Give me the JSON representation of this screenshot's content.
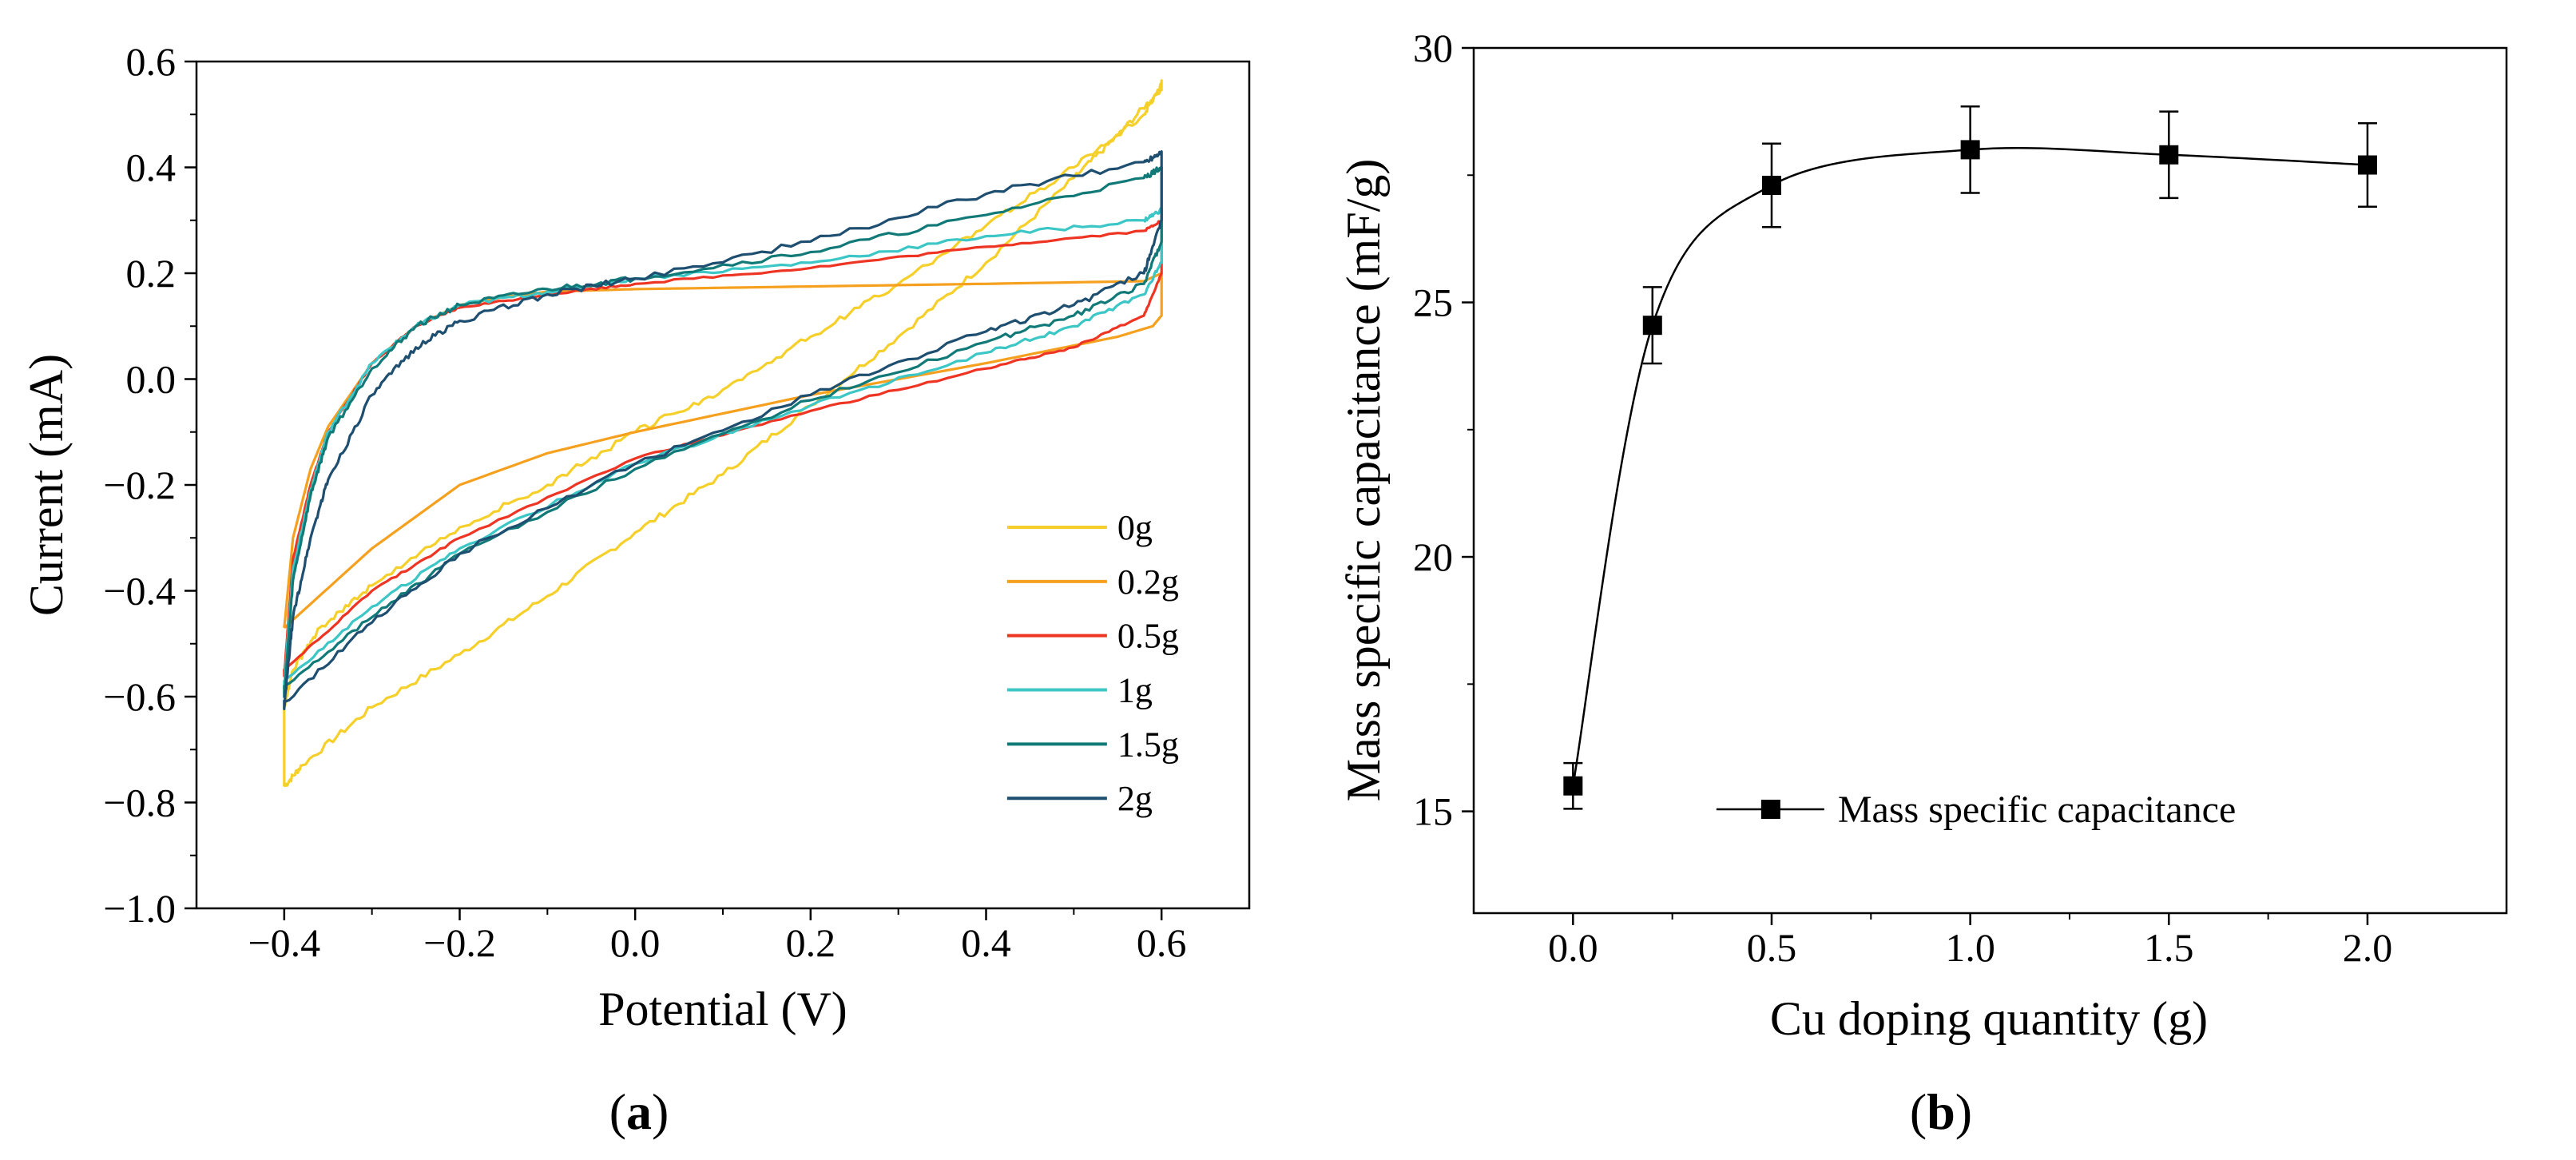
{
  "chart_data": [
    {
      "panel": "(a)",
      "panel_letter": "a",
      "type": "line",
      "title": "",
      "xlabel": "Potential (V)",
      "ylabel": "Current (mA)",
      "xlim": [
        -0.5,
        0.7
      ],
      "ylim": [
        -1.0,
        0.6
      ],
      "xticks": [
        -0.4,
        -0.2,
        0.0,
        0.2,
        0.4,
        0.6
      ],
      "xtick_labels": [
        "−0.4",
        "−0.2",
        "0.0",
        "0.2",
        "0.4",
        "0.6"
      ],
      "yticks": [
        -1.0,
        -0.8,
        -0.6,
        -0.4,
        -0.2,
        0.0,
        0.2,
        0.4,
        0.6
      ],
      "ytick_labels": [
        "−1.0",
        "−0.8",
        "−0.6",
        "−0.4",
        "−0.2",
        "0.0",
        "0.2",
        "0.4",
        "0.6"
      ],
      "grid": false,
      "legend_position": "lower-right",
      "series": [
        {
          "name": "0g",
          "color": "#f6d02a",
          "noise": 0.006,
          "x": [
            -0.4,
            -0.38,
            -0.3,
            -0.2,
            -0.1,
            0.0,
            0.1,
            0.2,
            0.3,
            0.4,
            0.5,
            0.55,
            0.6,
            0.6,
            0.58,
            0.5,
            0.4,
            0.3,
            0.2,
            0.1,
            0.0,
            -0.1,
            -0.2,
            -0.3,
            -0.36,
            -0.39,
            -0.4,
            -0.4
          ],
          "y": [
            -0.77,
            -0.73,
            -0.62,
            -0.52,
            -0.41,
            -0.29,
            -0.18,
            -0.05,
            0.08,
            0.22,
            0.38,
            0.46,
            0.55,
            0.56,
            0.5,
            0.4,
            0.29,
            0.18,
            0.08,
            -0.02,
            -0.1,
            -0.2,
            -0.28,
            -0.39,
            -0.47,
            -0.55,
            -0.62,
            -0.77
          ]
        },
        {
          "name": "0.2g",
          "color": "#f5a01e",
          "noise": 0.0,
          "x": [
            -0.4,
            -0.39,
            -0.37,
            -0.35,
            -0.3,
            -0.25,
            -0.2,
            -0.15,
            -0.1,
            0.0,
            0.2,
            0.4,
            0.58,
            0.6,
            0.6,
            0.59,
            0.55,
            0.4,
            0.2,
            0.0,
            -0.1,
            -0.2,
            -0.3,
            -0.4,
            -0.4
          ],
          "y": [
            -0.47,
            -0.3,
            -0.17,
            -0.09,
            0.03,
            0.1,
            0.14,
            0.155,
            0.165,
            0.17,
            0.175,
            0.18,
            0.185,
            0.2,
            0.12,
            0.1,
            0.08,
            0.03,
            -0.03,
            -0.1,
            -0.14,
            -0.2,
            -0.32,
            -0.47,
            -0.47
          ]
        },
        {
          "name": "0.5g",
          "color": "#ee3524",
          "noise": 0.002,
          "x": [
            -0.4,
            -0.39,
            -0.37,
            -0.35,
            -0.3,
            -0.25,
            -0.2,
            -0.1,
            0.0,
            0.2,
            0.4,
            0.58,
            0.6,
            0.6,
            0.58,
            0.5,
            0.4,
            0.2,
            0.0,
            -0.2,
            -0.3,
            -0.4,
            -0.4
          ],
          "y": [
            -0.56,
            -0.34,
            -0.2,
            -0.1,
            0.03,
            0.1,
            0.135,
            0.16,
            0.18,
            0.21,
            0.25,
            0.28,
            0.3,
            0.2,
            0.12,
            0.06,
            0.02,
            -0.06,
            -0.15,
            -0.3,
            -0.4,
            -0.55,
            -0.56
          ]
        },
        {
          "name": "1g",
          "color": "#3cc6c6",
          "noise": 0.004,
          "x": [
            -0.4,
            -0.39,
            -0.37,
            -0.35,
            -0.3,
            -0.25,
            -0.2,
            -0.1,
            0.0,
            0.2,
            0.4,
            0.58,
            0.6,
            0.6,
            0.58,
            0.5,
            0.4,
            0.2,
            0.0,
            -0.2,
            -0.3,
            -0.4,
            -0.4
          ],
          "y": [
            -0.58,
            -0.36,
            -0.21,
            -0.1,
            0.03,
            0.1,
            0.14,
            0.165,
            0.19,
            0.22,
            0.27,
            0.3,
            0.32,
            0.22,
            0.16,
            0.1,
            0.05,
            -0.05,
            -0.16,
            -0.32,
            -0.43,
            -0.57,
            -0.58
          ]
        },
        {
          "name": "1.5g",
          "color": "#117a78",
          "noise": 0.005,
          "x": [
            -0.4,
            -0.39,
            -0.37,
            -0.35,
            -0.3,
            -0.25,
            -0.2,
            -0.1,
            0.0,
            0.2,
            0.4,
            0.58,
            0.6,
            0.6,
            0.58,
            0.5,
            0.4,
            0.2,
            0.0,
            -0.2,
            -0.3,
            -0.4,
            -0.4
          ],
          "y": [
            -0.6,
            -0.38,
            -0.22,
            -0.11,
            0.02,
            0.1,
            0.14,
            0.17,
            0.19,
            0.24,
            0.31,
            0.38,
            0.4,
            0.26,
            0.18,
            0.12,
            0.07,
            -0.04,
            -0.17,
            -0.33,
            -0.45,
            -0.58,
            -0.6
          ]
        },
        {
          "name": "2g",
          "color": "#1e4e70",
          "noise": 0.006,
          "x": [
            -0.4,
            -0.39,
            -0.37,
            -0.35,
            -0.3,
            -0.25,
            -0.2,
            -0.1,
            0.0,
            0.2,
            0.4,
            0.58,
            0.6,
            0.6,
            0.58,
            0.5,
            0.4,
            0.2,
            0.0,
            -0.2,
            -0.3,
            -0.4,
            -0.4
          ],
          "y": [
            -0.62,
            -0.45,
            -0.3,
            -0.19,
            -0.03,
            0.06,
            0.11,
            0.16,
            0.19,
            0.26,
            0.35,
            0.41,
            0.43,
            0.3,
            0.2,
            0.14,
            0.09,
            -0.03,
            -0.16,
            -0.33,
            -0.46,
            -0.61,
            -0.62
          ]
        }
      ]
    },
    {
      "panel": "(b)",
      "panel_letter": "b",
      "type": "scatter",
      "title": "",
      "xlabel": "Cu doping quantity (g)",
      "ylabel": "Mass specific capacitance (mF/g)",
      "xlim": [
        -0.25,
        2.35
      ],
      "ylim": [
        13,
        30
      ],
      "xticks": [
        0.0,
        0.5,
        1.0,
        1.5,
        2.0
      ],
      "xtick_labels": [
        "0.0",
        "0.5",
        "1.0",
        "1.5",
        "2.0"
      ],
      "yticks": [
        15,
        20,
        25,
        30
      ],
      "ytick_labels": [
        "15",
        "20",
        "25",
        "30"
      ],
      "grid": false,
      "legend_position": "lower-right",
      "series": [
        {
          "name": "Mass specific capacitance",
          "color": "#000000",
          "x": [
            0.0,
            0.2,
            0.5,
            1.0,
            1.5,
            2.0
          ],
          "y": [
            15.5,
            24.55,
            27.3,
            28.0,
            27.9,
            27.7
          ],
          "error": [
            0.45,
            0.75,
            0.82,
            0.85,
            0.85,
            0.82
          ]
        }
      ]
    }
  ]
}
